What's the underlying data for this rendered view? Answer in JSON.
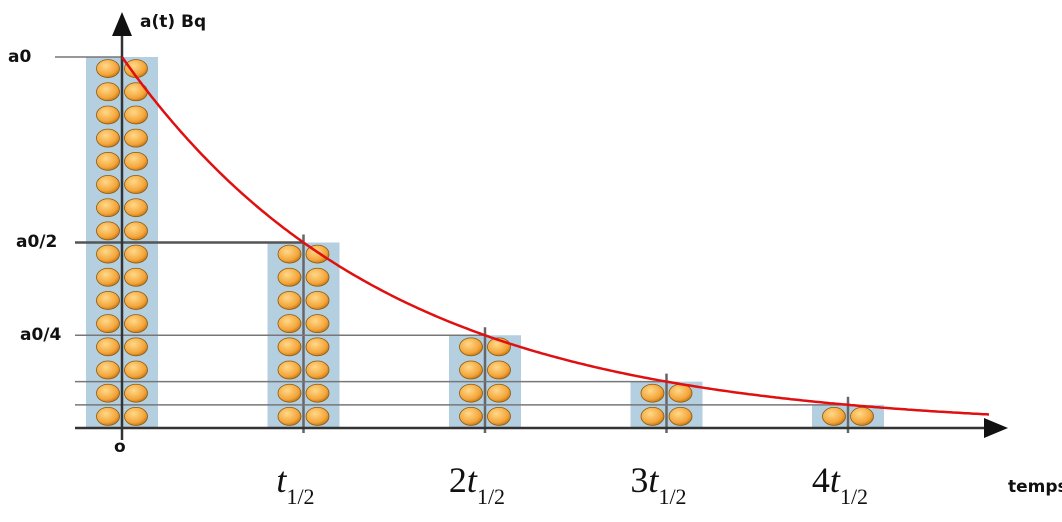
{
  "y_axis_label": "a(t) Bq",
  "x_axis_label": "temps",
  "origin_label": "o",
  "y_labels": [
    "a0",
    "a0/2",
    "a0/4"
  ],
  "x_labels": [
    {
      "coef": "",
      "var": "t",
      "sub": "1/2"
    },
    {
      "coef": "2",
      "var": "t",
      "sub": "1/2"
    },
    {
      "coef": "3",
      "var": "t",
      "sub": "1/2"
    },
    {
      "coef": "4",
      "var": "t",
      "sub": "1/2"
    }
  ],
  "columns": [
    16,
    8,
    4,
    2,
    1
  ]
}
